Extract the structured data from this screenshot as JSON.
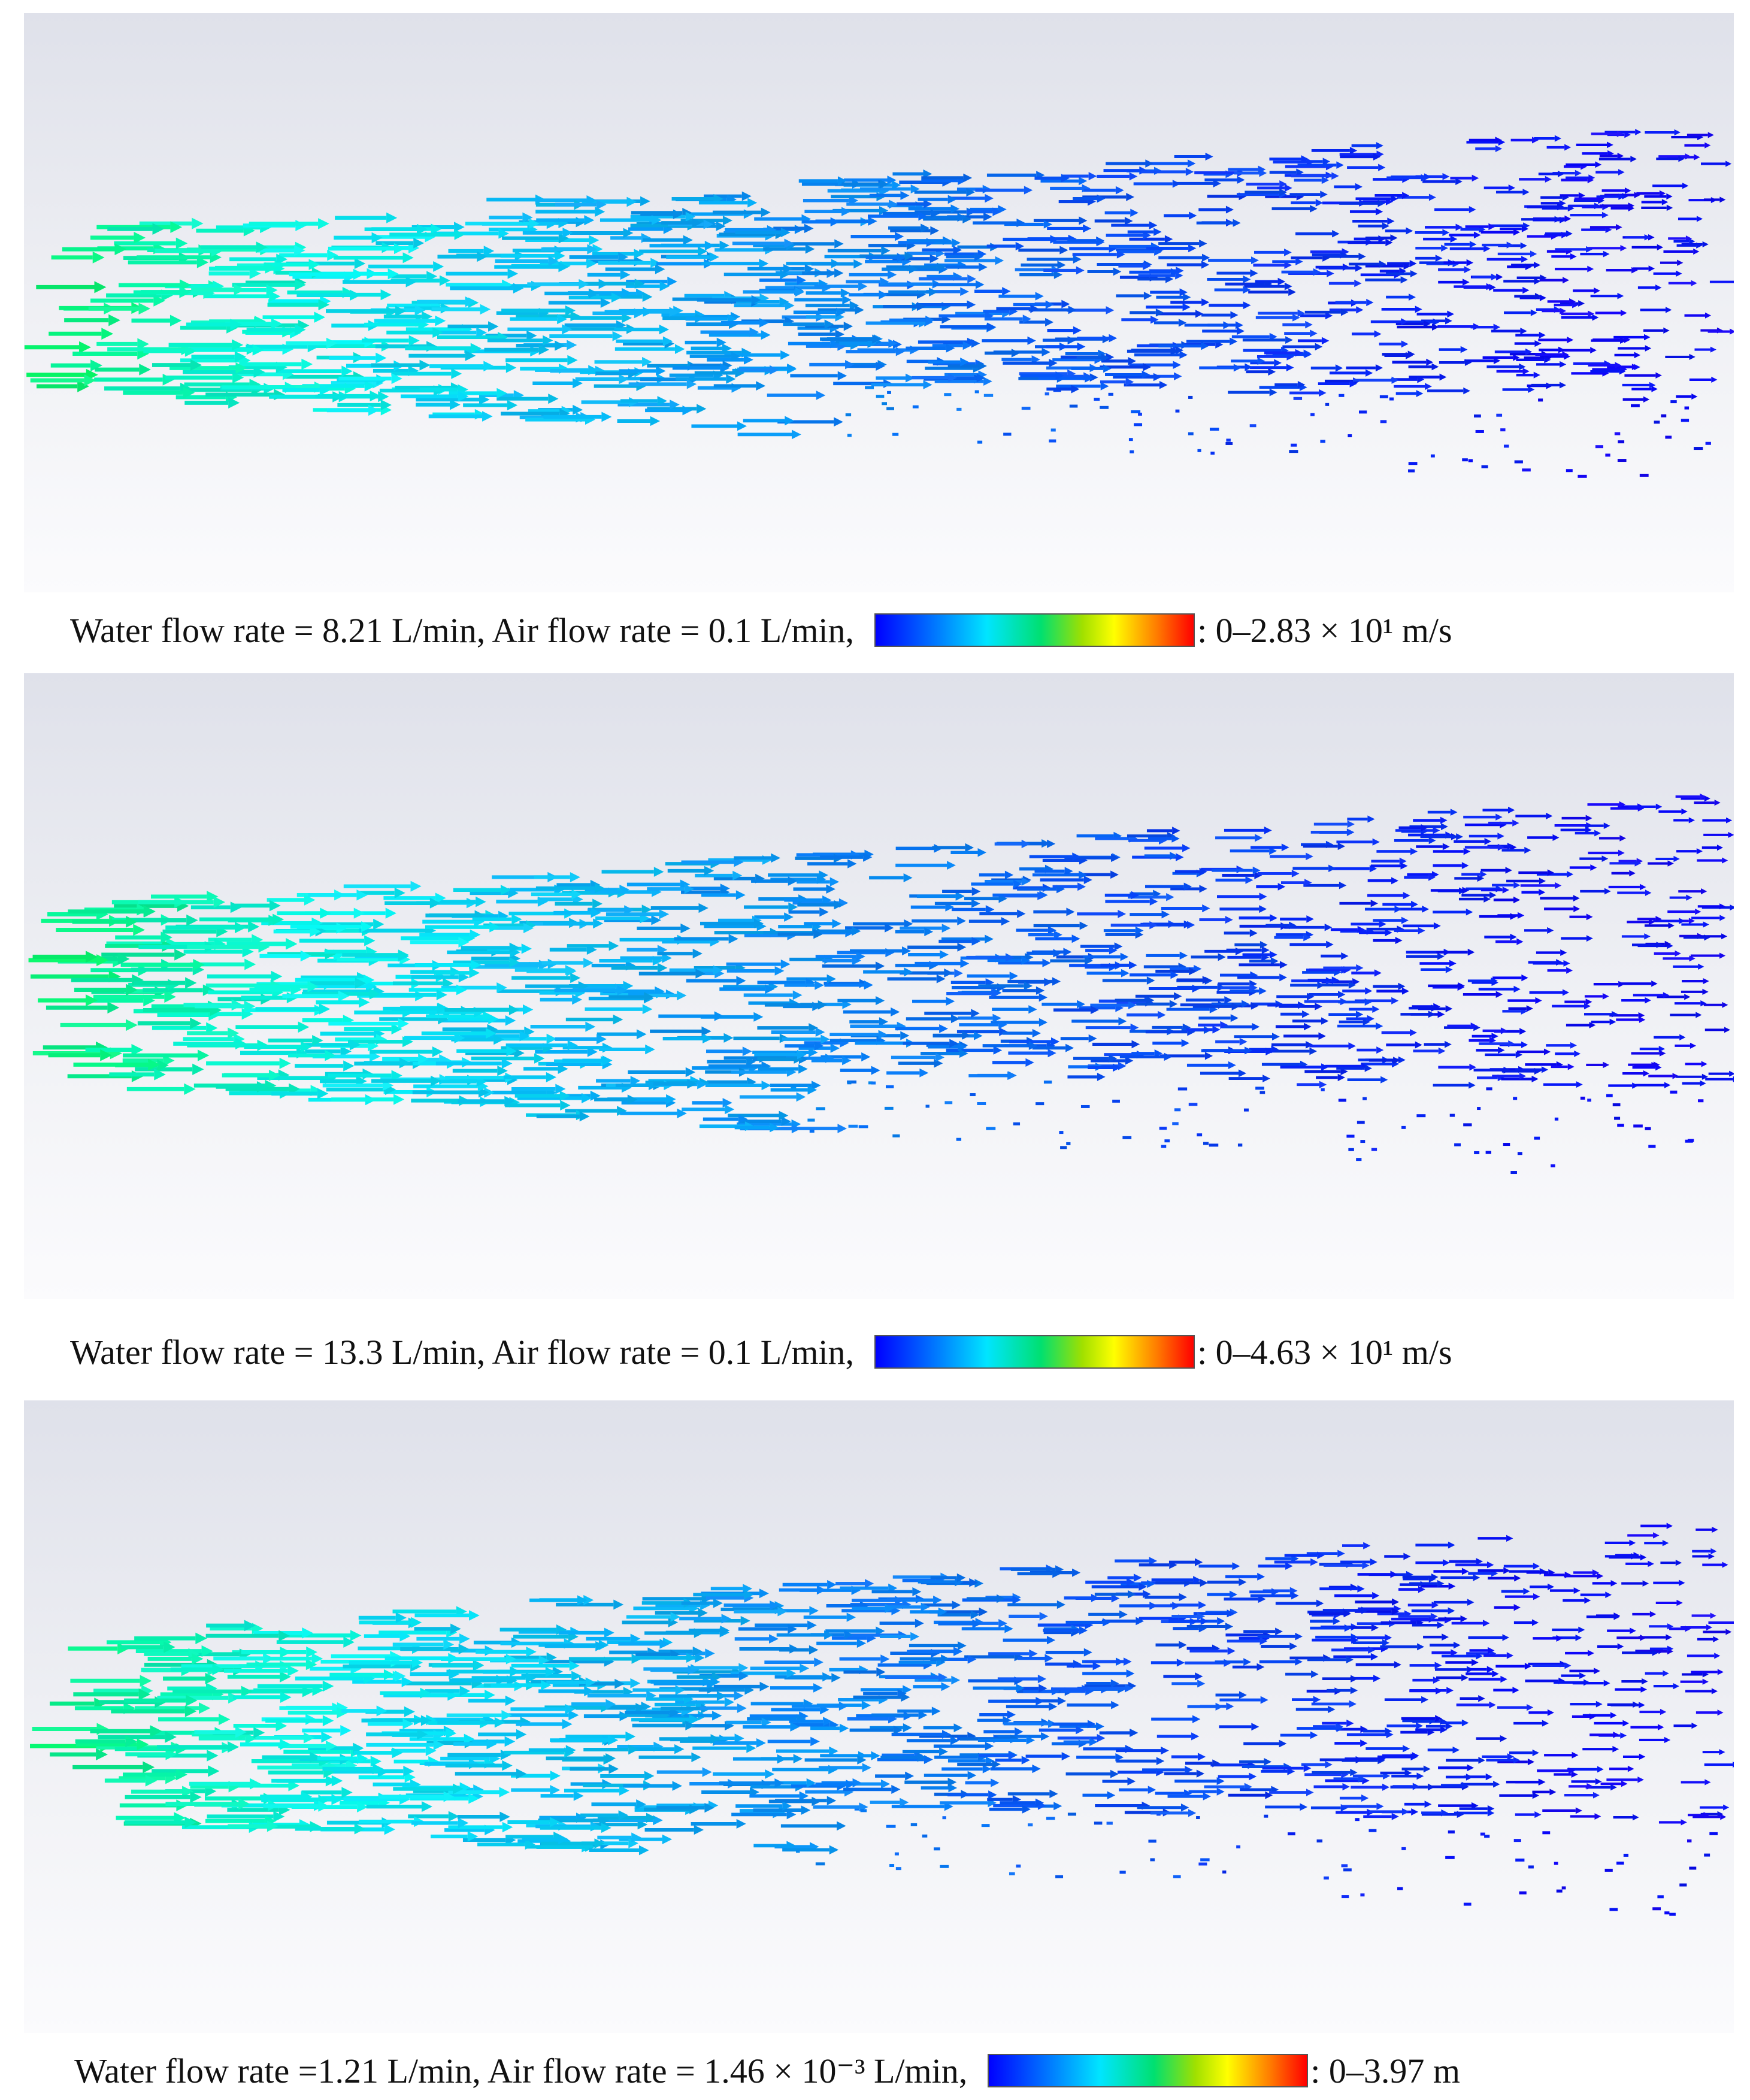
{
  "panels": [
    {
      "caption": "Water flow rate = 8.21 L/min, Air flow rate = 0.1 L/min,",
      "range": ": 0–2.83 × 10¹ m/s"
    },
    {
      "caption": "Water flow rate = 13.3 L/min, Air flow rate = 0.1 L/min,",
      "range": ": 0–4.63 × 10¹ m/s"
    },
    {
      "caption": "Water flow rate =1.21 L/min, Air flow rate = 1.46 × 10⁻³ L/min,",
      "range": ": 0–3.97 m"
    }
  ]
}
